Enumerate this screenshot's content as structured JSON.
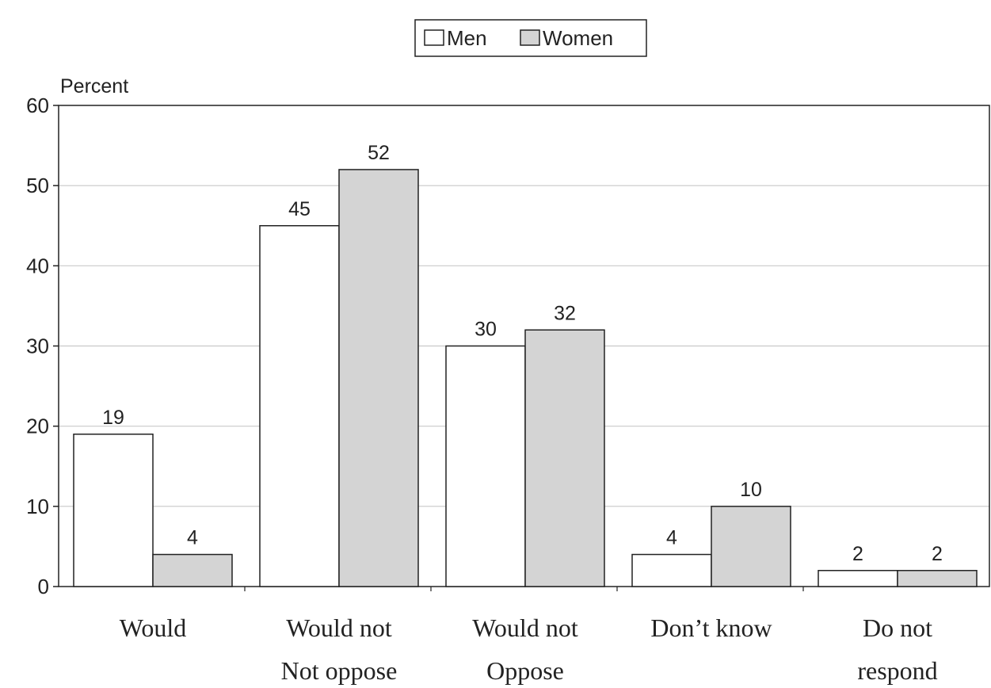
{
  "chart_data": {
    "type": "bar",
    "title": "",
    "xlabel": "",
    "ylabel": "Percent",
    "ylim": [
      0,
      60
    ],
    "yticks": [
      0,
      10,
      20,
      30,
      40,
      50,
      60
    ],
    "grid": true,
    "legend_position": "top-center",
    "categories": [
      [
        "Would"
      ],
      [
        "Would not",
        "Not oppose"
      ],
      [
        "Would not",
        "Oppose"
      ],
      [
        "Don’t know"
      ],
      [
        "Do not",
        "respond"
      ]
    ],
    "series": [
      {
        "name": "Men",
        "values": [
          19,
          45,
          30,
          4,
          2
        ],
        "color": "#ffffff"
      },
      {
        "name": "Women",
        "values": [
          4,
          52,
          32,
          10,
          2
        ],
        "color": "#d4d4d4"
      }
    ]
  }
}
